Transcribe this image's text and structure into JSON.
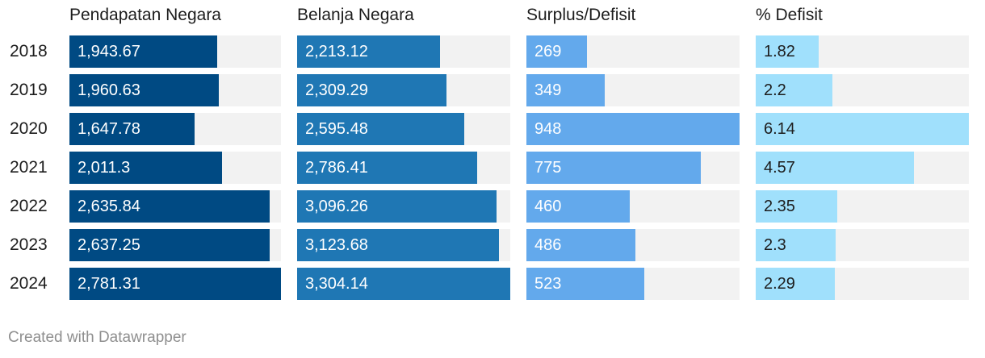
{
  "chart_data": {
    "type": "table",
    "categories": [
      "2018",
      "2019",
      "2020",
      "2021",
      "2022",
      "2023",
      "2024"
    ],
    "series": [
      {
        "name": "Pendapatan Negara",
        "values": [
          "1,943.67",
          "1,960.63",
          "1,647.78",
          "2,011.3",
          "2,635.84",
          "2,637.25",
          "2,781.31"
        ],
        "numeric": [
          1943.67,
          1960.63,
          1647.78,
          2011.3,
          2635.84,
          2637.25,
          2781.31
        ],
        "max": 2781.31,
        "bar_color": "#004a83",
        "text_color": "#ffffff"
      },
      {
        "name": "Belanja Negara",
        "values": [
          "2,213.12",
          "2,309.29",
          "2,595.48",
          "2,786.41",
          "3,096.26",
          "3,123.68",
          "3,304.14"
        ],
        "numeric": [
          2213.12,
          2309.29,
          2595.48,
          2786.41,
          3096.26,
          3123.68,
          3304.14
        ],
        "max": 3304.14,
        "bar_color": "#1f77b4",
        "text_color": "#ffffff"
      },
      {
        "name": "Surplus/Defisit",
        "values": [
          "269",
          "349",
          "948",
          "775",
          "460",
          "486",
          "523"
        ],
        "numeric": [
          269,
          349,
          948,
          775,
          460,
          486,
          523
        ],
        "max": 948,
        "bar_color": "#63a9ec",
        "text_color": "#ffffff"
      },
      {
        "name": "% Defisit",
        "values": [
          "1.82",
          "2.2",
          "6.14",
          "4.57",
          "2.35",
          "2.3",
          "2.29"
        ],
        "numeric": [
          1.82,
          2.2,
          6.14,
          4.57,
          2.35,
          2.3,
          2.29
        ],
        "max": 6.14,
        "bar_color": "#a0e0fc",
        "text_color": "#1d1d1d"
      }
    ]
  },
  "footer": {
    "credit": "Created with Datawrapper"
  }
}
